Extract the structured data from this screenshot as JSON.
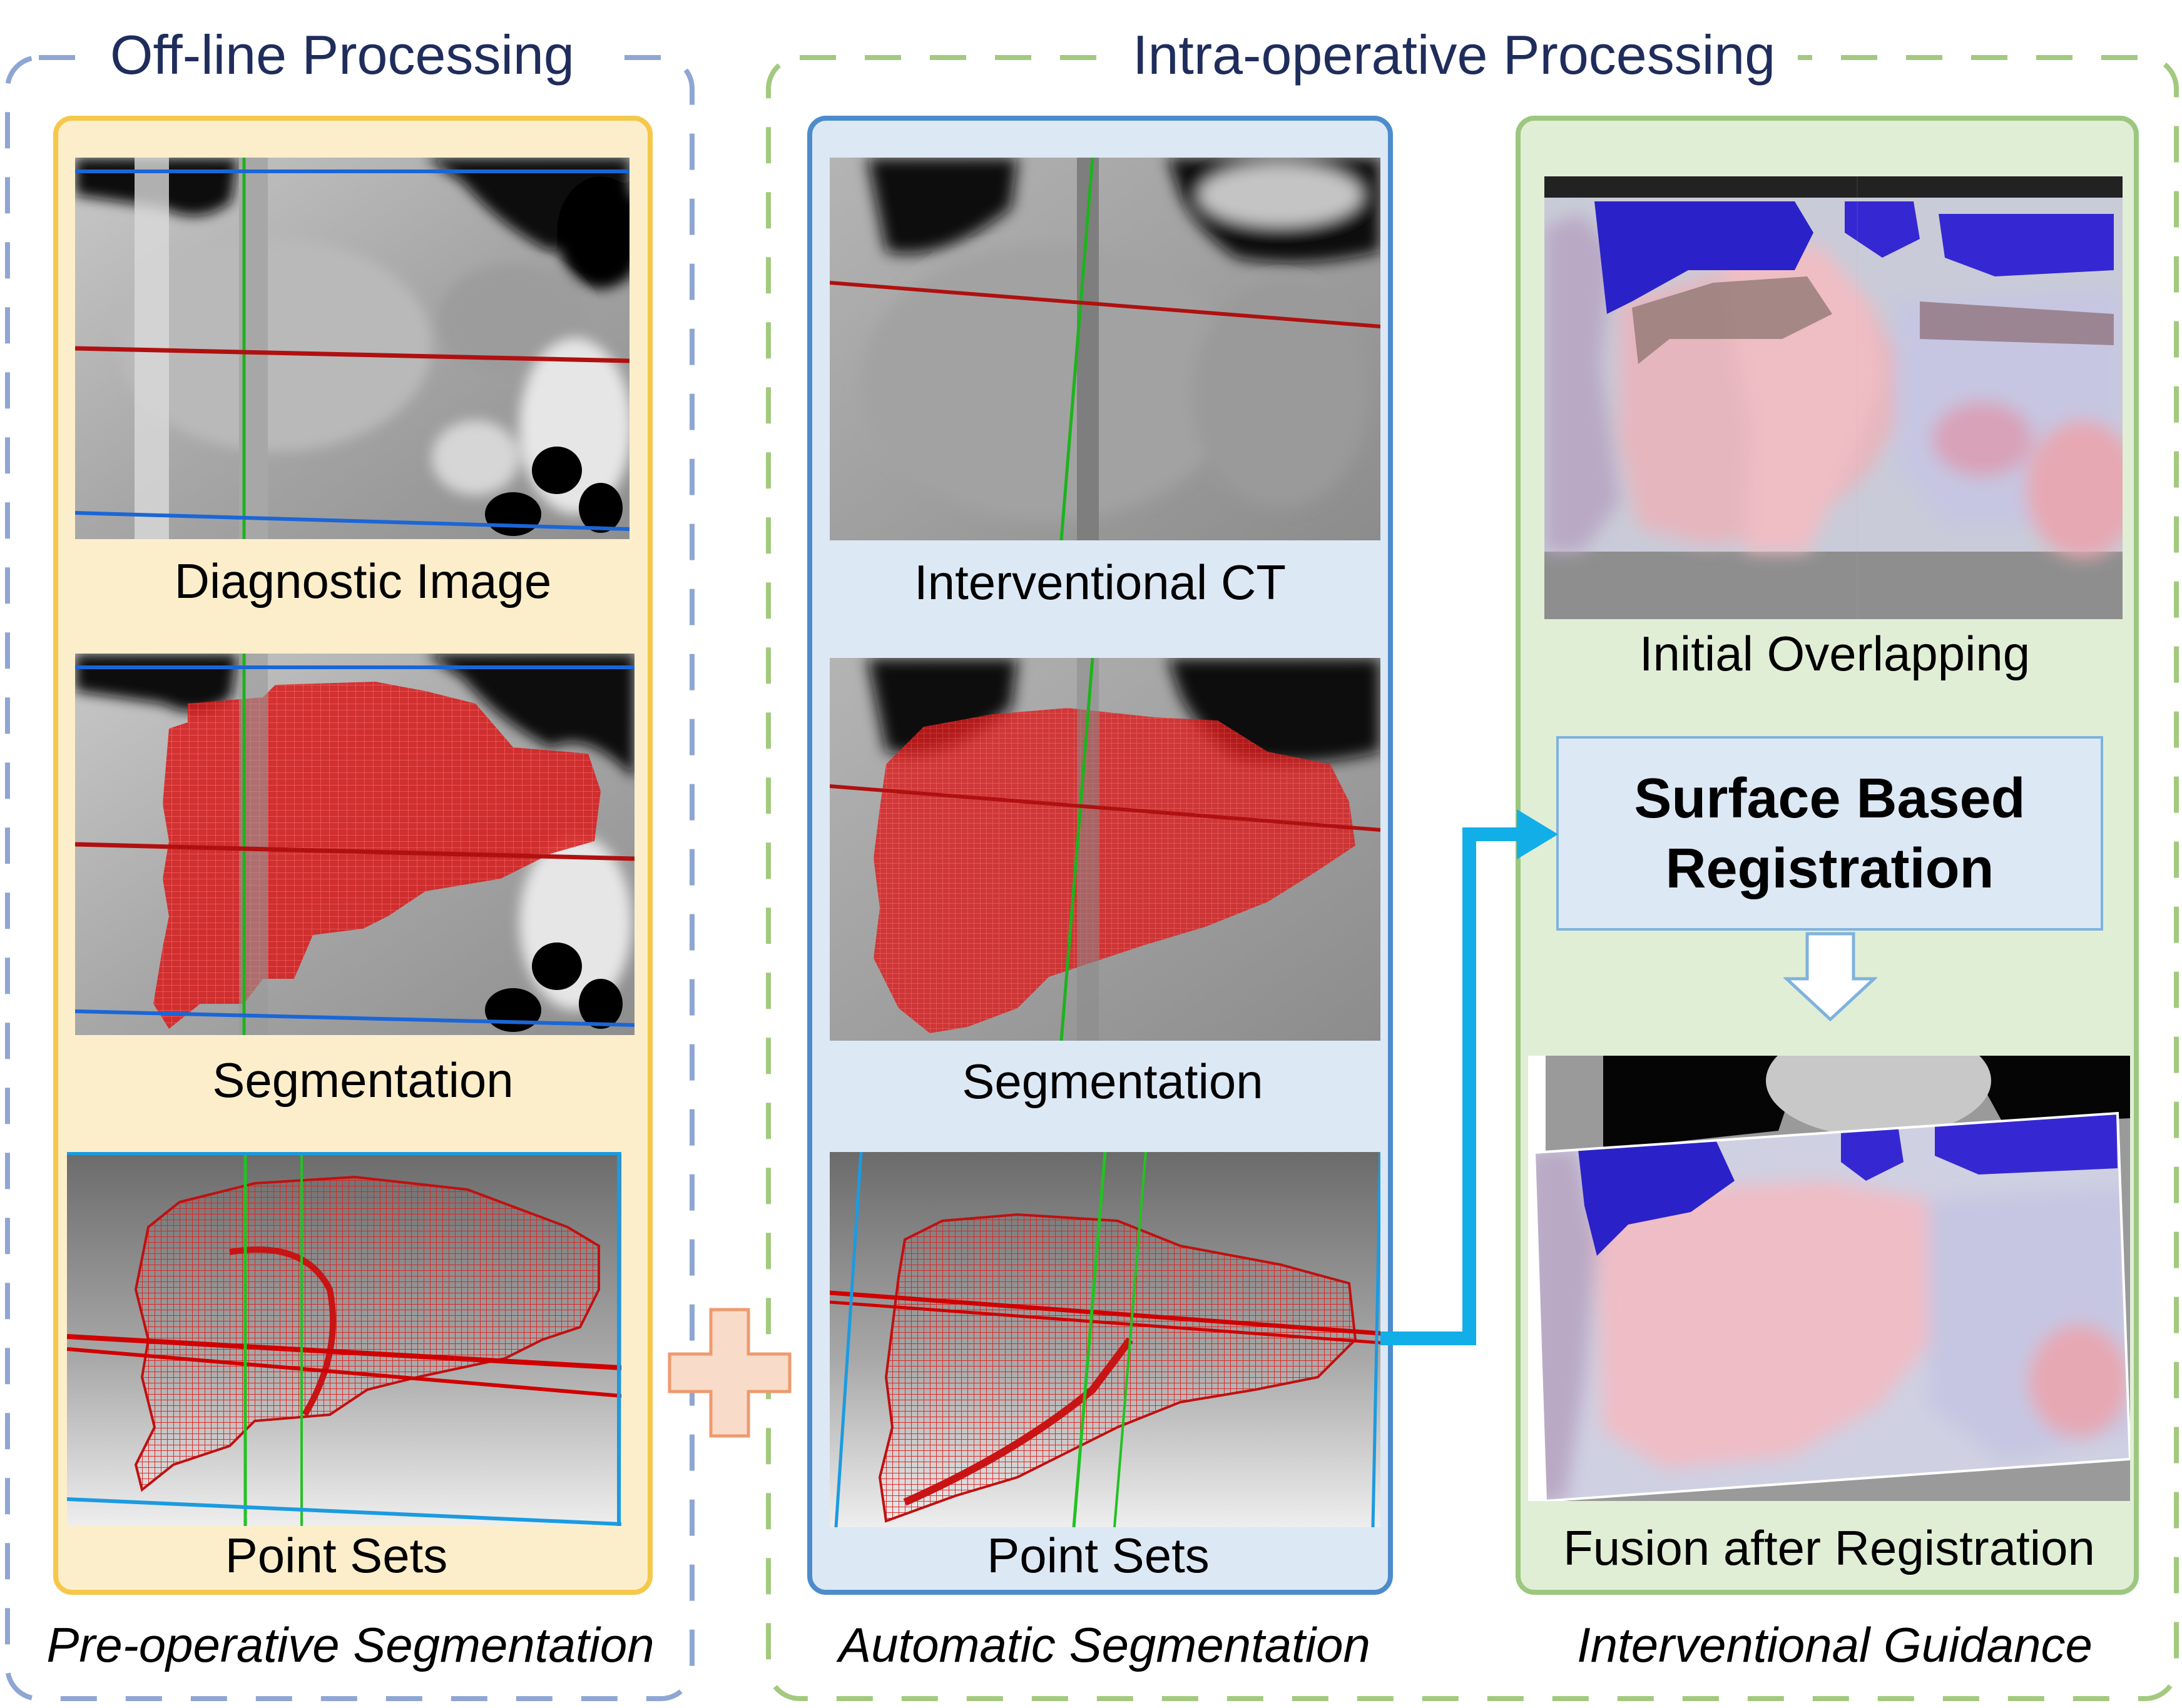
{
  "sections": {
    "offline": {
      "title": "Off-line Processing",
      "stage": "Pre-operative Segmentation"
    },
    "intraop": {
      "title": "Intra-operative Processing"
    }
  },
  "preop_panel": {
    "captions": [
      "Diagnostic Image",
      "Segmentation",
      "Point Sets"
    ]
  },
  "auto_panel": {
    "captions": [
      "Interventional CT",
      "Segmentation",
      "Point Sets"
    ],
    "stage": "Automatic Segmentation"
  },
  "guidance_panel": {
    "captions": [
      "Initial Overlapping",
      "Fusion after Registration"
    ],
    "registration": {
      "line1": "Surface Based",
      "line2": "Registration"
    },
    "stage": "Interventional Guidance"
  },
  "colors": {
    "offline_border": "#8fa6d4",
    "intraop_border": "#a3c97f",
    "preop_panel_fill": "#fdeecb",
    "preop_panel_border": "#f5c84a",
    "auto_panel_fill": "#dde8f5",
    "auto_panel_border": "#4d8ccc",
    "guidance_panel_fill": "#e1eed6",
    "guidance_panel_border": "#9cc77f",
    "arrow": "#12aee8",
    "plus": "#f8dcc9",
    "segmentation": "#d81818",
    "overlay_blue": "#2b22c8",
    "title_text": "#1f2d5c"
  }
}
